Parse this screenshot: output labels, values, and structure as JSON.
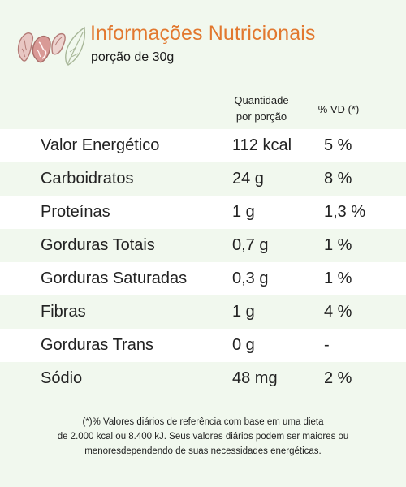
{
  "header": {
    "logo": "nuts-and-leaf-logo",
    "title": "Informações Nutricionais",
    "subtitle": "porção de 30g"
  },
  "columns": {
    "quantity": [
      "Quantidade",
      "por porção"
    ],
    "daily_value": "% VD (*)"
  },
  "rows": [
    {
      "name": "Valor Energético",
      "quantity": "112 kcal",
      "daily_value": "5 %"
    },
    {
      "name": "Carboidratos",
      "quantity": "24 g",
      "daily_value": "8 %"
    },
    {
      "name": "Proteínas",
      "quantity": "1 g",
      "daily_value": "1,3 %"
    },
    {
      "name": "Gorduras Totais",
      "quantity": "0,7 g",
      "daily_value": "1 %"
    },
    {
      "name": "Gorduras Saturadas",
      "quantity": "0,3 g",
      "daily_value": "1 %"
    },
    {
      "name": "Fibras",
      "quantity": "1 g",
      "daily_value": "4 %"
    },
    {
      "name": "Gorduras Trans",
      "quantity": "0 g",
      "daily_value": "-"
    },
    {
      "name": "Sódio",
      "quantity": "48 mg",
      "daily_value": "2 %"
    }
  ],
  "footnote": [
    "(*)% Valores diários de referência com base em uma dieta",
    "de 2.000 kcal ou 8.400 kJ. Seus valores diários podem ser maiores ou",
    "menoresdependendo de suas necessidades energéticas."
  ],
  "colors": {
    "background": "#f1f8ee",
    "row_white": "#ffffff",
    "title": "#e2782f",
    "logo_fill": "#d99a96",
    "logo_line": "#a9b89a"
  }
}
